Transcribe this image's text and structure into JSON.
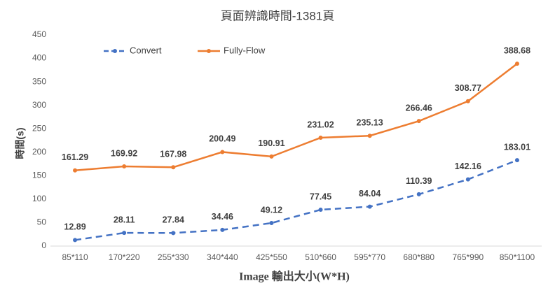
{
  "chart_data": {
    "type": "line",
    "title": "頁面辨識時間-1381頁",
    "x_label": "Image 輸出大小(W*H)",
    "y_label": "時間(s)",
    "categories": [
      "85*110",
      "170*220",
      "255*330",
      "340*440",
      "425*550",
      "510*660",
      "595*770",
      "680*880",
      "765*990",
      "850*1100"
    ],
    "series": [
      {
        "name": "Convert",
        "color": "#4472c4",
        "dashed": true,
        "values": [
          12.89,
          28.11,
          27.84,
          34.46,
          49.12,
          77.45,
          84.04,
          110.39,
          142.16,
          183.01
        ]
      },
      {
        "name": "Fully-Flow",
        "color": "#ed7d31",
        "dashed": false,
        "values": [
          161.29,
          169.92,
          167.98,
          200.49,
          190.91,
          231.02,
          235.13,
          266.46,
          308.77,
          388.68
        ]
      }
    ],
    "ylim": [
      0,
      450
    ],
    "yticks": [
      0,
      50,
      100,
      150,
      200,
      250,
      300,
      350,
      400,
      450
    ],
    "grid": false,
    "legend": "top-left"
  }
}
